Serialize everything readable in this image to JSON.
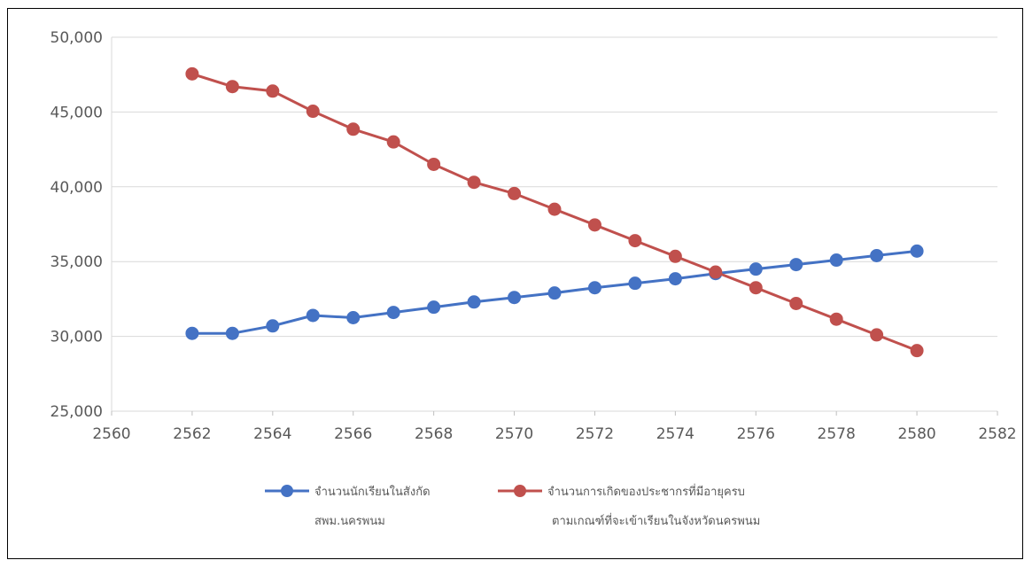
{
  "chart_data": {
    "type": "scatter",
    "mode": "lines+markers",
    "title": "",
    "xlabel": "",
    "ylabel": "",
    "xlim": [
      2560,
      2582
    ],
    "ylim": [
      25000,
      50000
    ],
    "x_ticks": [
      2560,
      2562,
      2564,
      2566,
      2568,
      2570,
      2572,
      2574,
      2576,
      2578,
      2580,
      2582
    ],
    "x_tick_labels": [
      "2560",
      "2562",
      "2564",
      "2566",
      "2568",
      "2570",
      "2572",
      "2574",
      "2576",
      "2578",
      "2580",
      "2582"
    ],
    "y_ticks": [
      25000,
      30000,
      35000,
      40000,
      45000,
      50000
    ],
    "y_tick_labels": [
      "25,000",
      "30,000",
      "35,000",
      "40,000",
      "45,000",
      "50,000"
    ],
    "grid": "horizontal",
    "legend_position": "bottom",
    "x": [
      2562,
      2563,
      2564,
      2565,
      2566,
      2567,
      2568,
      2569,
      2570,
      2571,
      2572,
      2573,
      2574,
      2575,
      2576,
      2577,
      2578,
      2579,
      2580
    ],
    "series": [
      {
        "name_lines": [
          "จำนวนนักเรียนในสังกัด",
          "สพม.นครพนม"
        ],
        "color": "#4472c4",
        "values": [
          30200,
          30200,
          30700,
          31400,
          31250,
          31600,
          31950,
          32300,
          32600,
          32900,
          33250,
          33550,
          33850,
          34200,
          34500,
          34800,
          35100,
          35400,
          35700
        ]
      },
      {
        "name_lines": [
          "จำนวนการเกิดของประชากรที่มีอายุครบ",
          "ตามเกณฑ์ที่จะเข้าเรียนในจังหวัดนครพนม"
        ],
        "color": "#c0504d",
        "values": [
          47550,
          46700,
          46400,
          45050,
          43850,
          43000,
          41500,
          40300,
          39550,
          38500,
          37450,
          36400,
          35350,
          34300,
          33250,
          32200,
          31150,
          30100,
          29050
        ]
      }
    ]
  }
}
